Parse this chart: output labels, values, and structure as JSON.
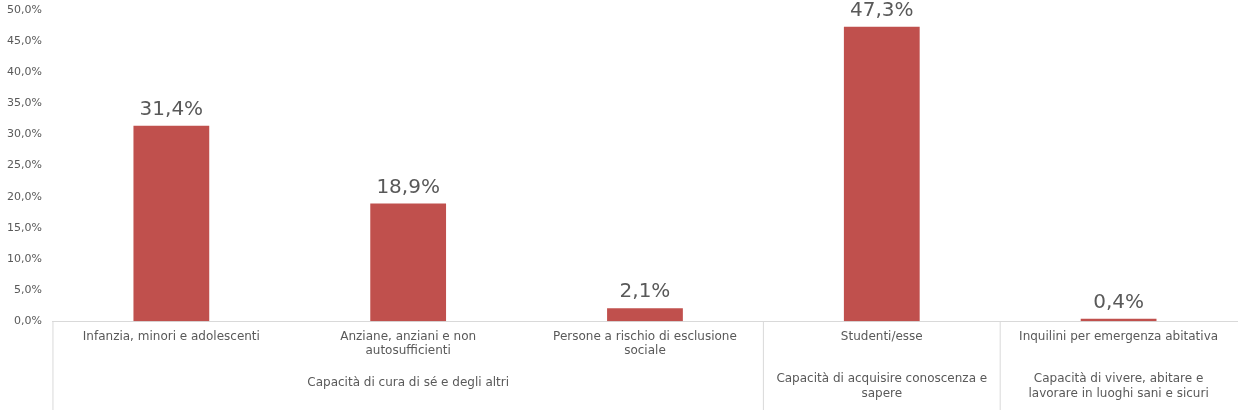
{
  "chart_data": {
    "type": "bar",
    "categories": [
      "Infanzia, minori e adolescenti",
      "Anziane, anziani e non autosufficienti",
      "Persone a rischio di esclusione sociale",
      "Studenti/esse",
      "Inquilini per emergenza abitativa"
    ],
    "values": [
      31.4,
      18.9,
      2.1,
      47.3,
      0.4
    ],
    "value_labels": [
      "31,4%",
      "18,9%",
      "2,1%",
      "47,3%",
      "0,4%"
    ],
    "color": "#c0504d",
    "ylim": [
      0,
      50
    ],
    "yticks": [
      {
        "value": 0,
        "label": "0,0%"
      },
      {
        "value": 5,
        "label": "5,0%"
      },
      {
        "value": 10,
        "label": "10,0%"
      },
      {
        "value": 15,
        "label": "15,0%"
      },
      {
        "value": 20,
        "label": "20,0%"
      },
      {
        "value": 25,
        "label": "25,0%"
      },
      {
        "value": 30,
        "label": "30,0%"
      },
      {
        "value": 35,
        "label": "35,0%"
      },
      {
        "value": 40,
        "label": "40,0%"
      },
      {
        "value": 45,
        "label": "45,0%"
      },
      {
        "value": 50,
        "label": "50,0%"
      }
    ],
    "grid": false,
    "legend": false,
    "annotations": [
      "Capacità di cura di sé e degli altri",
      "Capacità di acquisire conoscenza e sapere",
      "Capacità di vivere, abitare e lavorare in luoghi sani e sicuri"
    ]
  }
}
